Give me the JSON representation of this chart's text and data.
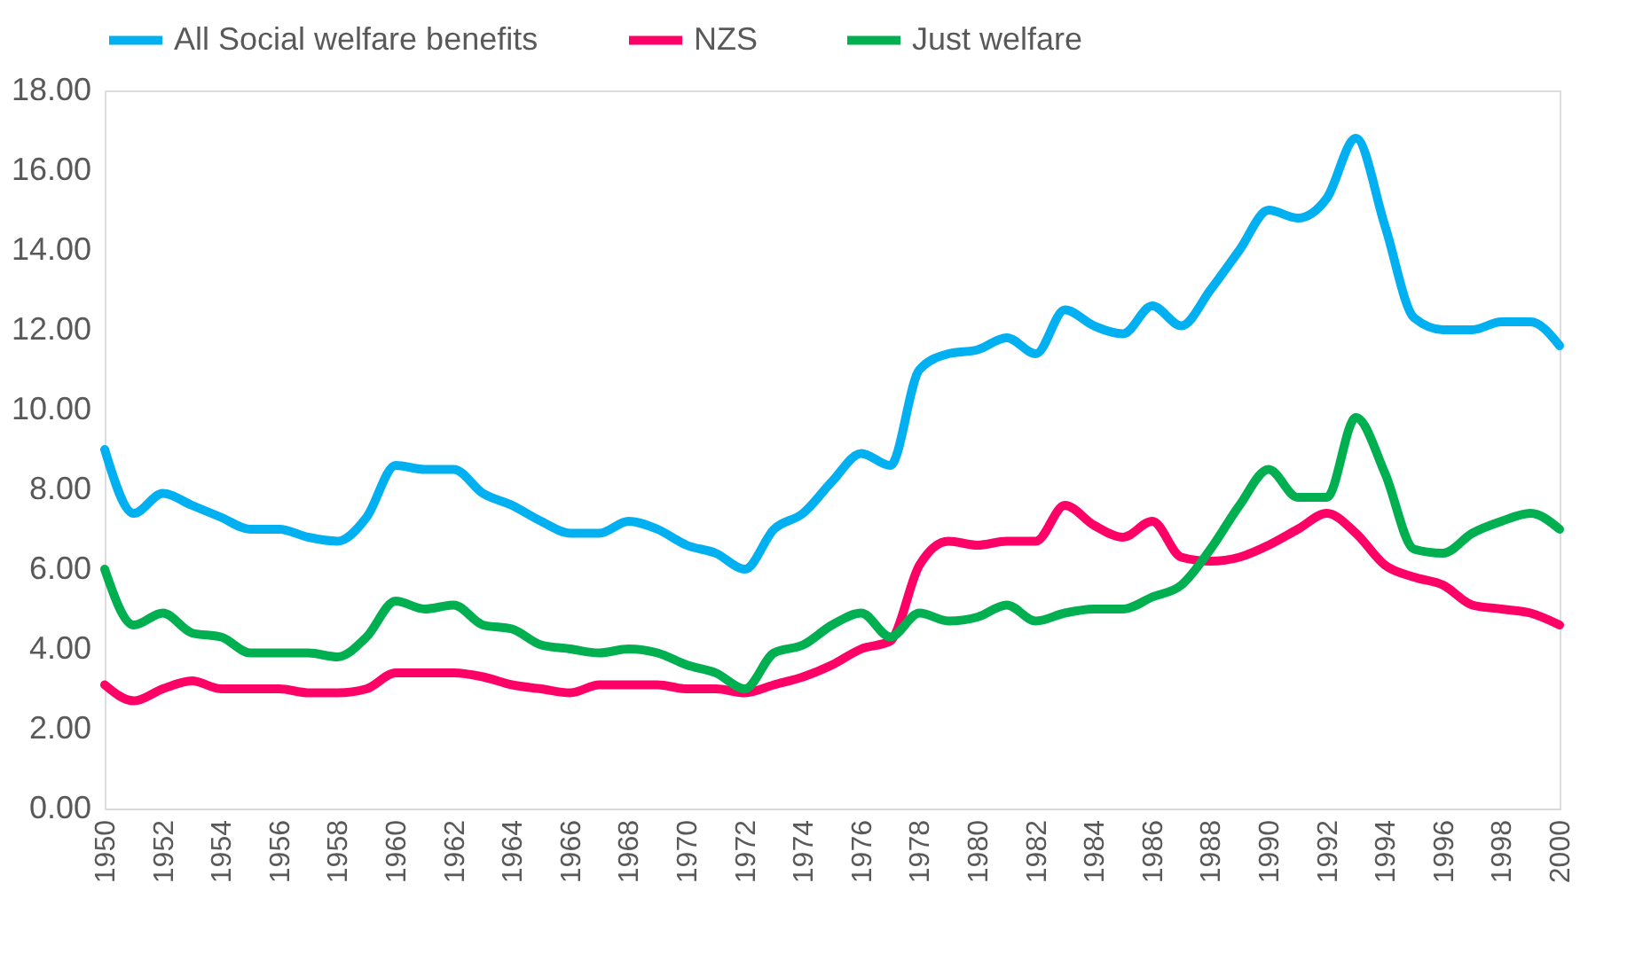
{
  "chart_data": {
    "type": "line",
    "legend": "top",
    "line_style": "solid",
    "x": [
      1950,
      1951,
      1952,
      1953,
      1954,
      1955,
      1956,
      1957,
      1958,
      1959,
      1960,
      1961,
      1962,
      1963,
      1964,
      1965,
      1966,
      1967,
      1968,
      1969,
      1970,
      1971,
      1972,
      1973,
      1974,
      1975,
      1976,
      1977,
      1978,
      1979,
      1980,
      1981,
      1982,
      1983,
      1984,
      1985,
      1986,
      1987,
      1988,
      1989,
      1990,
      1991,
      1992,
      1993,
      1994,
      1995,
      1996,
      1997,
      1998,
      1999,
      2000
    ],
    "xlim": [
      1950,
      2000
    ],
    "xticks": [
      1950,
      1952,
      1954,
      1956,
      1958,
      1960,
      1962,
      1964,
      1966,
      1968,
      1970,
      1972,
      1974,
      1976,
      1978,
      1980,
      1982,
      1984,
      1986,
      1988,
      1990,
      1992,
      1994,
      1996,
      1998,
      2000
    ],
    "ylim": [
      0,
      18
    ],
    "yticks": [
      {
        "value": 0,
        "label": "0.00"
      },
      {
        "value": 2,
        "label": "2.00"
      },
      {
        "value": 4,
        "label": "4.00"
      },
      {
        "value": 6,
        "label": "6.00"
      },
      {
        "value": 8,
        "label": "8.00"
      },
      {
        "value": 10,
        "label": "10.00"
      },
      {
        "value": 12,
        "label": "12.00"
      },
      {
        "value": 14,
        "label": "14.00"
      },
      {
        "value": 16,
        "label": "16.00"
      },
      {
        "value": 18,
        "label": "18.00"
      }
    ],
    "series": [
      {
        "name": "All Social welfare benefits",
        "color": "#00b0f0",
        "values": [
          9.0,
          7.4,
          7.9,
          7.6,
          7.3,
          7.0,
          7.0,
          6.8,
          6.7,
          7.3,
          8.6,
          8.5,
          8.5,
          7.9,
          7.6,
          7.2,
          6.9,
          6.9,
          7.2,
          7.0,
          6.6,
          6.4,
          6.0,
          7.0,
          7.4,
          8.2,
          8.9,
          8.6,
          11.0,
          11.4,
          11.5,
          11.8,
          11.4,
          12.5,
          12.1,
          11.9,
          12.6,
          12.1,
          13.0,
          14.0,
          15.0,
          14.8,
          15.3,
          16.8,
          14.6,
          12.3,
          12.0,
          12.0,
          12.2,
          12.2,
          11.6
        ]
      },
      {
        "name": "NZS",
        "color": "#ff0066",
        "values": [
          3.1,
          2.7,
          3.0,
          3.2,
          3.0,
          3.0,
          3.0,
          2.9,
          2.9,
          3.0,
          3.4,
          3.4,
          3.4,
          3.3,
          3.1,
          3.0,
          2.9,
          3.1,
          3.1,
          3.1,
          3.0,
          3.0,
          2.9,
          3.1,
          3.3,
          3.6,
          4.0,
          4.2,
          6.1,
          6.7,
          6.6,
          6.7,
          6.7,
          7.6,
          7.1,
          6.8,
          7.2,
          6.3,
          6.2,
          6.3,
          6.6,
          7.0,
          7.4,
          6.9,
          6.1,
          5.8,
          5.6,
          5.1,
          5.0,
          4.9,
          4.6
        ]
      },
      {
        "name": "Just welfare",
        "color": "#00b050",
        "values": [
          6.0,
          4.6,
          4.9,
          4.4,
          4.3,
          3.9,
          3.9,
          3.9,
          3.8,
          4.3,
          5.2,
          5.0,
          5.1,
          4.6,
          4.5,
          4.1,
          4.0,
          3.9,
          4.0,
          3.9,
          3.6,
          3.4,
          3.0,
          3.9,
          4.1,
          4.6,
          4.9,
          4.3,
          4.9,
          4.7,
          4.8,
          5.1,
          4.7,
          4.9,
          5.0,
          5.0,
          5.3,
          5.6,
          6.5,
          7.6,
          8.5,
          7.8,
          7.8,
          9.8,
          8.4,
          6.5,
          6.4,
          6.9,
          7.2,
          7.4,
          7.0
        ]
      }
    ]
  }
}
